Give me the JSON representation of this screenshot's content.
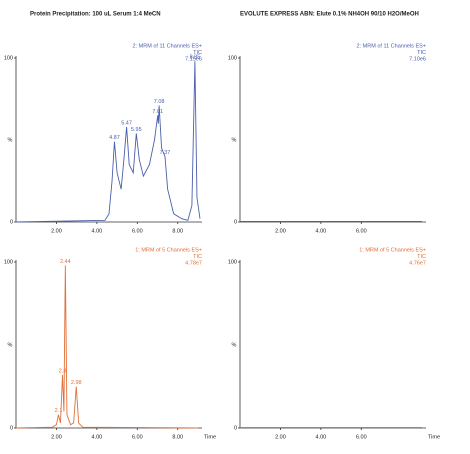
{
  "column_titles": [
    "Protein Precipitation: 100 uL Serum 1:4 MeCN",
    "EVOLUTE EXPRESS ABN: Elute 0.1% NH4OH 90/10 H2O/MeOH"
  ],
  "chart_data": [
    {
      "type": "line",
      "annotations": [
        "2: MRM of 11 Channels ES+",
        "TIC",
        "7.15e6"
      ],
      "ylabel": "%",
      "x": [
        0,
        4.4,
        4.6,
        4.75,
        4.87,
        5.0,
        5.2,
        5.35,
        5.47,
        5.6,
        5.8,
        5.95,
        6.1,
        6.3,
        6.6,
        6.85,
        7.01,
        7.04,
        7.08,
        7.2,
        7.37,
        7.5,
        7.8,
        8.2,
        8.5,
        8.7,
        8.85,
        8.95,
        9.1
      ],
      "series": [
        {
          "color": "#4a5fae",
          "values": [
            0,
            1,
            5,
            25,
            49,
            30,
            20,
            40,
            58,
            35,
            30,
            54,
            38,
            28,
            35,
            50,
            65,
            60,
            71,
            45,
            40,
            20,
            5,
            2,
            1,
            10,
            98,
            15,
            2
          ]
        }
      ],
      "peak_labels": [
        4.87,
        5.47,
        5.95,
        7.01,
        7.08,
        7.37,
        8.85
      ],
      "peak_heights": [
        49,
        58,
        54,
        65,
        71,
        40,
        98
      ],
      "xlim": [
        0,
        9.2
      ],
      "xticks": [
        {
          "value": 2,
          "label": "2.00"
        },
        {
          "value": 4,
          "label": "4.00"
        },
        {
          "value": 6,
          "label": "6.00"
        },
        {
          "value": 8,
          "label": "8.00"
        }
      ],
      "ylim": [
        0,
        100
      ],
      "yticks": [
        0,
        100
      ]
    },
    {
      "type": "line",
      "annotations": [
        "2: MRM of 11 Channels ES+",
        "TIC",
        "7.10e6"
      ],
      "ylabel": "%",
      "x": [
        0,
        9
      ],
      "series": [
        {
          "color": "#4a5fae",
          "values": [
            0.3,
            0.3
          ]
        }
      ],
      "xlim": [
        0,
        9.2
      ],
      "xticks": [
        {
          "value": 2,
          "label": "2.00"
        },
        {
          "value": 4,
          "label": "4.00"
        },
        {
          "value": 6,
          "label": "6.00"
        }
      ],
      "ylim": [
        0,
        100
      ],
      "yticks": [
        0,
        100
      ]
    },
    {
      "type": "line",
      "annotations": [
        "1: MRM of 5 Channels ES+",
        "TIC",
        "4.78e7"
      ],
      "ylabel": "%",
      "xlabel": "Time",
      "x": [
        0,
        1.8,
        2.0,
        2.1,
        2.2,
        2.3,
        2.37,
        2.44,
        2.52,
        2.7,
        2.85,
        2.98,
        3.1,
        3.3,
        9
      ],
      "series": [
        {
          "color": "#e0703a",
          "values": [
            0,
            0.5,
            2,
            8,
            3,
            32,
            10,
            98,
            8,
            2,
            3,
            25,
            3,
            0.5,
            0
          ]
        }
      ],
      "peak_labels": [
        2.1,
        2.3,
        2.44,
        2.98
      ],
      "peak_heights": [
        8,
        32,
        98,
        25
      ],
      "xlim": [
        0,
        9.2
      ],
      "xticks": [
        {
          "value": 2,
          "label": "2.00"
        },
        {
          "value": 4,
          "label": "4.00"
        },
        {
          "value": 6,
          "label": "6.00"
        },
        {
          "value": 8,
          "label": "8.00"
        }
      ],
      "ylim": [
        0,
        100
      ],
      "yticks": [
        0,
        100
      ]
    },
    {
      "type": "line",
      "annotations": [
        "1: MRM of 5 Channels ES+",
        "TIC",
        "4.76e7"
      ],
      "ylabel": "%",
      "xlabel": "Time",
      "x": [
        0,
        9
      ],
      "series": [
        {
          "color": "#e0703a",
          "values": [
            0.3,
            0.3
          ]
        }
      ],
      "xlim": [
        0,
        9.2
      ],
      "xticks": [
        {
          "value": 2,
          "label": "2.00"
        },
        {
          "value": 4,
          "label": "4.00"
        },
        {
          "value": 6,
          "label": "6.00"
        }
      ],
      "ylim": [
        0,
        100
      ],
      "yticks": [
        0,
        100
      ]
    }
  ]
}
